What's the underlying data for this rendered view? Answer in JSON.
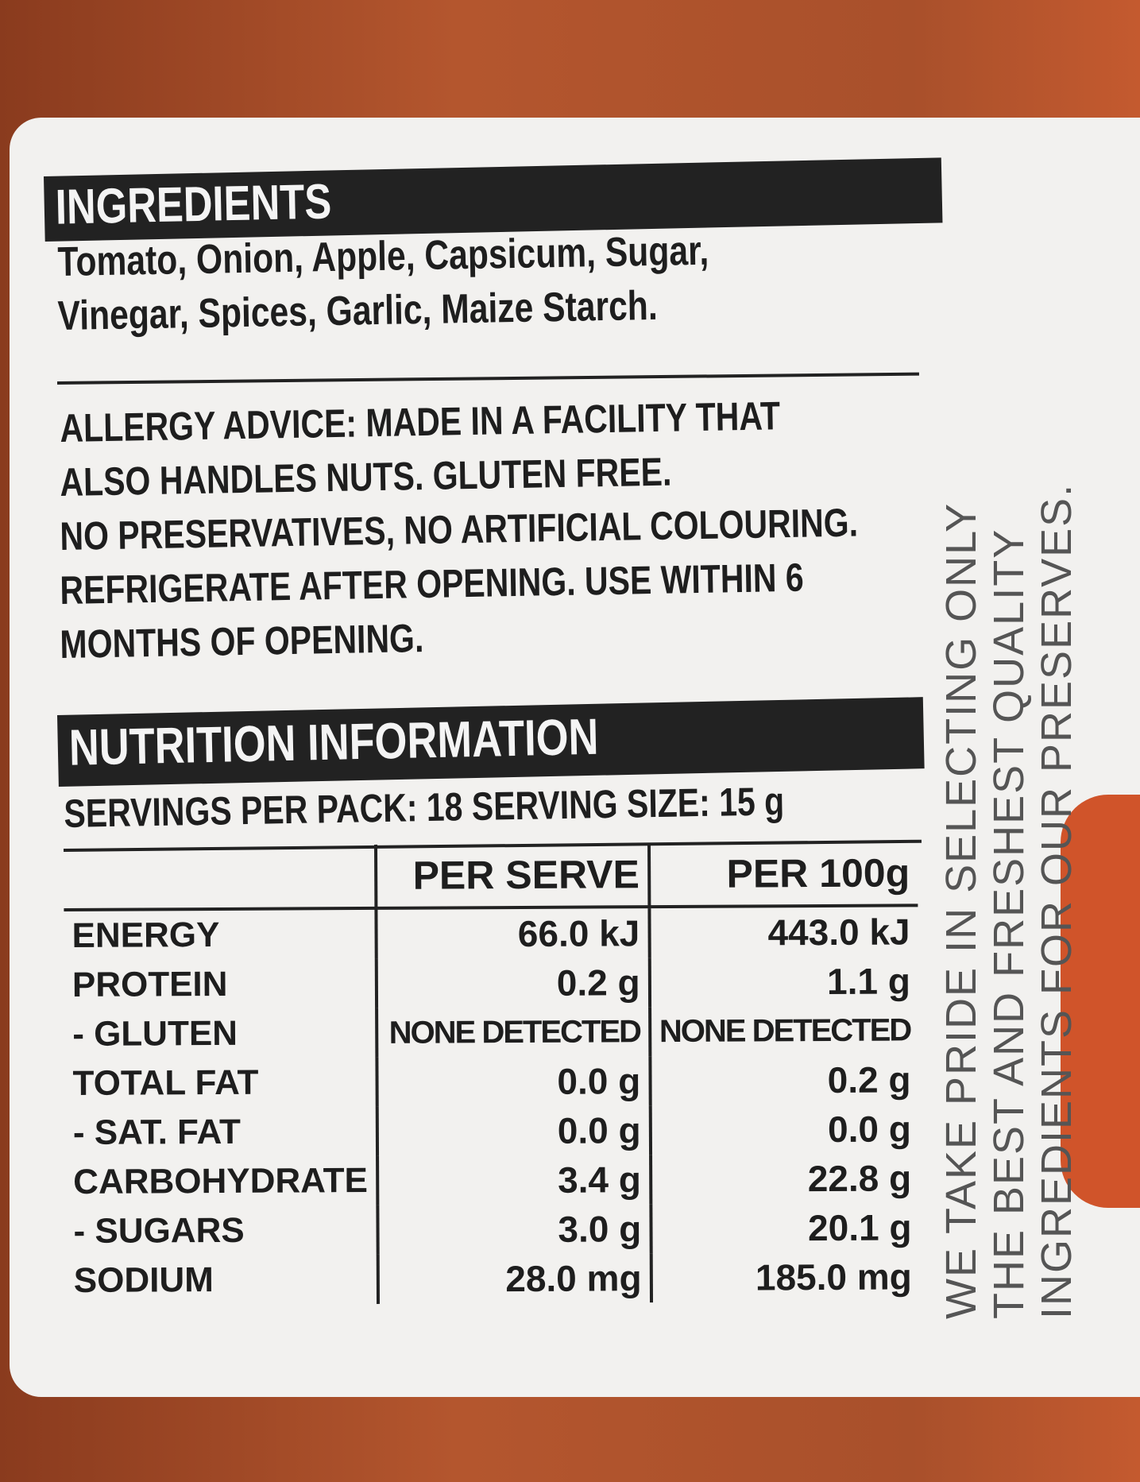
{
  "ingredients": {
    "heading": "INGREDIENTS",
    "line1": "Tomato, Onion, Apple, Capsicum, Sugar,",
    "line2": "Vinegar, Spices, Garlic, Maize Starch."
  },
  "advice": {
    "line1": "ALLERGY ADVICE: MADE IN A FACILITY THAT",
    "line2": "ALSO HANDLES NUTS. GLUTEN FREE.",
    "line3": "NO PRESERVATIVES, NO ARTIFICIAL COLOURING.",
    "line4": "REFRIGERATE AFTER OPENING. USE WITHIN 6",
    "line5": "MONTHS OF OPENING."
  },
  "nutrition": {
    "heading": "NUTRITION INFORMATION",
    "servings": "SERVINGS PER PACK: 18  SERVING SIZE: 15 g",
    "columns": [
      "",
      "PER SERVE",
      "PER 100g"
    ],
    "rows": [
      {
        "name": "ENERGY",
        "per_serve": "66.0 kJ",
        "per_100g": "443.0 kJ"
      },
      {
        "name": "PROTEIN",
        "per_serve": "0.2 g",
        "per_100g": "1.1 g"
      },
      {
        "name": "- GLUTEN",
        "per_serve": "NONE DETECTED",
        "per_100g": "NONE DETECTED"
      },
      {
        "name": "TOTAL FAT",
        "per_serve": "0.0 g",
        "per_100g": "0.2 g"
      },
      {
        "name": "- SAT. FAT",
        "per_serve": "0.0 g",
        "per_100g": "0.0 g"
      },
      {
        "name": "CARBOHYDRATE",
        "per_serve": "3.4 g",
        "per_100g": "22.8 g"
      },
      {
        "name": "- SUGARS",
        "per_serve": "3.0 g",
        "per_100g": "20.1 g"
      },
      {
        "name": "SODIUM",
        "per_serve": "28.0 mg",
        "per_100g": "185.0 mg"
      }
    ]
  },
  "side_text": {
    "line1": "WE TAKE PRIDE IN SELECTING ONLY",
    "line2": "THE BEST AND FRESHEST QUALITY",
    "line3": "INGREDIENTS FOR OUR PRESERVES."
  },
  "colors": {
    "label": "#f2f1ef",
    "bar": "#222222",
    "jar": "#b4562e"
  }
}
